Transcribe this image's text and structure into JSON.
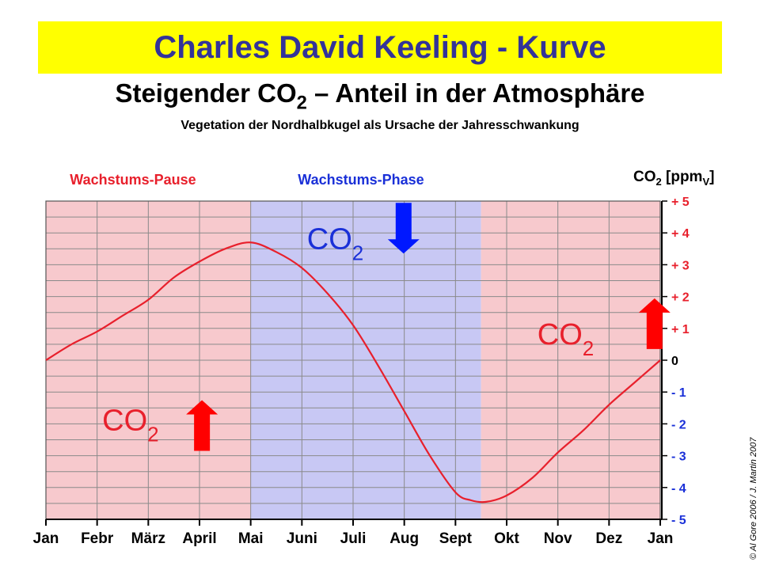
{
  "header": {
    "title": "Charles David Keeling - Kurve",
    "subtitle_pre": "Steigender CO",
    "subtitle_sub": "2",
    "subtitle_post": " – Anteil in der Atmosphäre",
    "caption": "Vegetation der Nordhalbkugel als Ursache der Jahresschwankung"
  },
  "copyright": "© Al Gore 2006 / J. Martin 2007",
  "colors": {
    "banner": "#ffff00",
    "title": "#333399",
    "pause_bg": "#f7c9cd",
    "phase_bg": "#c8c8f4",
    "curve": "#e8202c",
    "red_text": "#e8202c",
    "blue_text": "#1a30d8",
    "arrow_up": "#ff0000",
    "arrow_down": "#0018ff"
  },
  "chart_data": {
    "type": "line",
    "title": "Charles David Keeling - Kurve",
    "xlabel": "",
    "ylabel": "CO2 [ppmV]",
    "y_axis_label": {
      "main": "CO",
      "sub1": "2",
      "mid": " [ppm",
      "sub2": "V",
      "end": "]"
    },
    "x_ticks": [
      "Jan",
      "Febr",
      "März",
      "April",
      "Mai",
      "Juni",
      "Juli",
      "Aug",
      "Sept",
      "Okt",
      "Nov",
      "Dez",
      "Jan"
    ],
    "y_ticks": [
      "+ 5",
      "+ 4",
      "+ 3",
      "+ 2",
      "+ 1",
      "0",
      "- 1",
      "- 2",
      "- 3",
      "- 4",
      "- 5"
    ],
    "ylim": [
      -5,
      5
    ],
    "xlim": [
      0,
      12
    ],
    "y_axis_position": "right",
    "grid": true,
    "series": [
      {
        "x": [
          0,
          0.5,
          1,
          1.5,
          2,
          2.5,
          3,
          3.5,
          4,
          4.5,
          5,
          5.5,
          6,
          6.5,
          7,
          7.5,
          8,
          8.3,
          8.6,
          9,
          9.5,
          10,
          10.5,
          11,
          11.5,
          12
        ],
        "y": [
          0,
          0.5,
          0.9,
          1.4,
          1.9,
          2.6,
          3.1,
          3.5,
          3.7,
          3.4,
          2.9,
          2.1,
          1.1,
          -0.2,
          -1.6,
          -3.0,
          -4.15,
          -4.4,
          -4.45,
          -4.25,
          -3.7,
          -2.9,
          -2.2,
          -1.4,
          -0.7,
          0.0
        ]
      }
    ],
    "regions": [
      {
        "label": "Wachstums-Pause",
        "from": 0,
        "to": 4
      },
      {
        "label": "Wachstums-Phase",
        "from": 4,
        "to": 8.5
      },
      {
        "label": "",
        "from": 8.5,
        "to": 12
      }
    ],
    "annotations": [
      {
        "text": "CO",
        "sub": "2",
        "color": "red",
        "arrow": "up",
        "x": 1.1,
        "y": -2.2
      },
      {
        "text": "CO",
        "sub": "2",
        "color": "blue",
        "arrow": "down",
        "x": 5.1,
        "y": 3.5
      },
      {
        "text": "CO",
        "sub": "2",
        "color": "red",
        "arrow": "up",
        "x": 9.6,
        "y": 0.5
      }
    ]
  }
}
